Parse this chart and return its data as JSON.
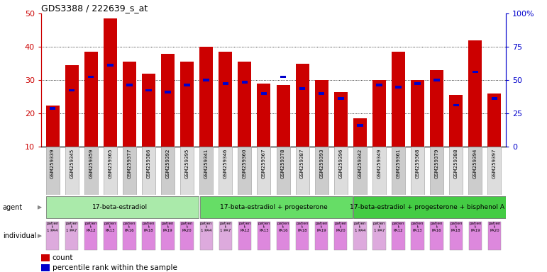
{
  "title": "GDS3388 / 222639_s_at",
  "gsm_labels": [
    "GSM259339",
    "GSM259345",
    "GSM259359",
    "GSM259365",
    "GSM259377",
    "GSM259386",
    "GSM259392",
    "GSM259395",
    "GSM259341",
    "GSM259346",
    "GSM259360",
    "GSM259367",
    "GSM259378",
    "GSM259387",
    "GSM259393",
    "GSM259396",
    "GSM259342",
    "GSM259349",
    "GSM259361",
    "GSM259368",
    "GSM259379",
    "GSM259388",
    "GSM259394",
    "GSM259397"
  ],
  "count_values": [
    22.5,
    34.5,
    38.5,
    48.5,
    35.5,
    32.0,
    38.0,
    35.5,
    40.0,
    38.5,
    35.5,
    29.0,
    28.5,
    35.0,
    30.0,
    26.5,
    18.5,
    30.0,
    38.5,
    30.0,
    33.0,
    25.5,
    42.0,
    26.0
  ],
  "percentile_values": [
    21.5,
    27.0,
    31.0,
    34.5,
    28.5,
    27.0,
    26.5,
    28.5,
    30.0,
    29.0,
    29.5,
    26.0,
    31.0,
    27.5,
    26.0,
    24.5,
    16.5,
    28.5,
    28.0,
    29.0,
    30.0,
    22.5,
    32.5,
    24.5
  ],
  "bar_color": "#cc0000",
  "percentile_color": "#0000cc",
  "ylim_left": [
    10,
    50
  ],
  "ylim_right": [
    0,
    100
  ],
  "yticks_left": [
    10,
    20,
    30,
    40,
    50
  ],
  "yticks_right": [
    0,
    25,
    50,
    75,
    100
  ],
  "ytick_labels_right": [
    "0",
    "25",
    "50",
    "75",
    "100%"
  ],
  "agent_groups": [
    {
      "label": "17-beta-estradiol",
      "start": 0,
      "end": 8,
      "color": "#aaeaaa"
    },
    {
      "label": "17-beta-estradiol + progesterone",
      "start": 8,
      "end": 16,
      "color": "#66dd66"
    },
    {
      "label": "17-beta-estradiol + progesterone + bisphenol A",
      "start": 16,
      "end": 24,
      "color": "#44cc44"
    }
  ],
  "bar_width": 0.7,
  "axis_color_left": "#cc0000",
  "axis_color_right": "#0000cc",
  "ind_labels_line1": [
    "patien",
    "patien",
    "patien",
    "patien",
    "patien",
    "patien",
    "patien",
    "patien",
    "patien",
    "patien",
    "patien",
    "patien",
    "patien",
    "patien",
    "patien",
    "patien",
    "patien",
    "patien",
    "patien",
    "patien",
    "patien",
    "patien",
    "patien",
    "patien"
  ],
  "ind_labels_line2": [
    "t",
    "t",
    "t",
    "t",
    "t",
    "t",
    "t",
    "t",
    "t",
    "t",
    "t",
    "t",
    "t",
    "t",
    "t",
    "t",
    "t",
    "t",
    "t",
    "t",
    "t",
    "t",
    "t",
    "t"
  ],
  "ind_labels_line3": [
    "1 PA4",
    "1 PA7",
    "PA12",
    "PA13",
    "PA16",
    "PA18",
    "PA19",
    "PA20",
    "1 PA4",
    "1 PA7",
    "PA12",
    "PA13",
    "PA16",
    "PA18",
    "PA19",
    "PA20",
    "1 PA4",
    "1 PA7",
    "PA12",
    "PA13",
    "PA16",
    "PA18",
    "PA19",
    "PA20"
  ],
  "ind_colors": [
    "#ddaadd",
    "#ddaadd",
    "#dd88dd",
    "#dd88dd",
    "#dd88dd",
    "#dd88dd",
    "#dd88dd",
    "#dd88dd",
    "#ddaadd",
    "#ddaadd",
    "#dd88dd",
    "#dd88dd",
    "#dd88dd",
    "#dd88dd",
    "#dd88dd",
    "#dd88dd",
    "#ddaadd",
    "#ddaadd",
    "#dd88dd",
    "#dd88dd",
    "#dd88dd",
    "#dd88dd",
    "#dd88dd",
    "#dd88dd"
  ]
}
